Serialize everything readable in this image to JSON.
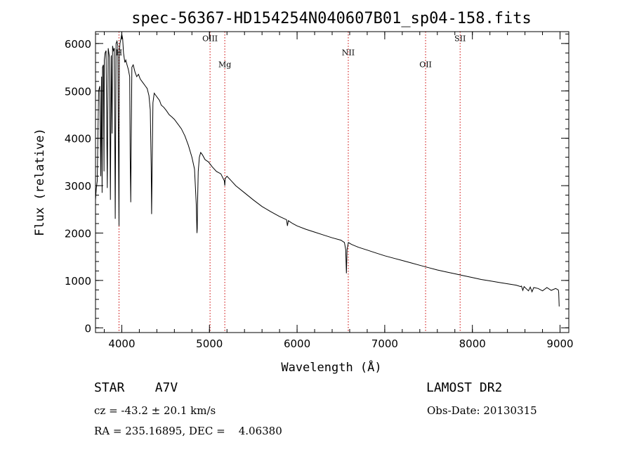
{
  "chart_data": {
    "type": "line",
    "title": "spec-56367-HD154254N040607B01_sp04-158.fits",
    "xlabel": "Wavelength (Å)",
    "ylabel": "Flux (relative)",
    "xlim": [
      3700,
      9100
    ],
    "ylim": [
      -100,
      6250
    ],
    "x_ticks": [
      4000,
      5000,
      6000,
      7000,
      8000,
      9000
    ],
    "y_ticks": [
      0,
      1000,
      2000,
      3000,
      4000,
      5000,
      6000
    ],
    "grid": false,
    "series": [
      {
        "x": [
          3700,
          3710,
          3720,
          3735,
          3750,
          3760,
          3770,
          3775,
          3780,
          3790,
          3797,
          3800,
          3810,
          3820,
          3835,
          3845,
          3860,
          3870,
          3880,
          3889,
          3895,
          3905,
          3915,
          3925,
          3935,
          3945,
          3955,
          3960,
          3968,
          3972,
          3980,
          3990,
          4000,
          4010,
          4020,
          4035,
          4045,
          4060,
          4075,
          4090,
          4096,
          4102,
          4108,
          4115,
          4130,
          4150,
          4170,
          4190,
          4210,
          4230,
          4250,
          4270,
          4290,
          4310,
          4325,
          4335,
          4340,
          4345,
          4355,
          4370,
          4390,
          4410,
          4430,
          4450,
          4480,
          4510,
          4540,
          4570,
          4600,
          4640,
          4680,
          4720,
          4760,
          4800,
          4830,
          4850,
          4858,
          4861,
          4864,
          4872,
          4885,
          4900,
          4920,
          4950,
          4990,
          5030,
          5080,
          5130,
          5170,
          5175,
          5180,
          5200,
          5250,
          5300,
          5400,
          5500,
          5600,
          5700,
          5800,
          5880,
          5890,
          5900,
          5950,
          6000,
          6100,
          6200,
          6300,
          6400,
          6500,
          6540,
          6555,
          6563,
          6570,
          6585,
          6620,
          6700,
          6800,
          6900,
          7000,
          7100,
          7200,
          7300,
          7400,
          7500,
          7600,
          7700,
          7800,
          7900,
          8000,
          8100,
          8200,
          8300,
          8400,
          8500,
          8550,
          8560,
          8575,
          8590,
          8640,
          8660,
          8680,
          8700,
          8750,
          8800,
          8850,
          8900,
          8950,
          8980,
          8985,
          8990
        ],
        "y": [
          2700,
          2950,
          3100,
          5000,
          5100,
          3200,
          5300,
          2850,
          5500,
          5550,
          3300,
          5650,
          5800,
          5850,
          2950,
          5900,
          5700,
          2700,
          5750,
          4100,
          5950,
          5850,
          5900,
          2300,
          6000,
          6050,
          5950,
          4200,
          2150,
          5800,
          6000,
          6100,
          6200,
          6100,
          5800,
          5600,
          5650,
          5550,
          5450,
          5300,
          3600,
          2650,
          4000,
          5500,
          5550,
          5400,
          5300,
          5350,
          5250,
          5200,
          5150,
          5100,
          5050,
          4900,
          4600,
          3400,
          2400,
          3200,
          4750,
          4950,
          4900,
          4850,
          4800,
          4700,
          4650,
          4580,
          4500,
          4450,
          4400,
          4300,
          4200,
          4050,
          3850,
          3600,
          3350,
          2600,
          2000,
          2100,
          2600,
          3300,
          3600,
          3700,
          3650,
          3550,
          3500,
          3400,
          3300,
          3250,
          3100,
          3000,
          3150,
          3200,
          3100,
          3000,
          2850,
          2700,
          2560,
          2450,
          2350,
          2280,
          2150,
          2260,
          2200,
          2150,
          2080,
          2020,
          1960,
          1900,
          1850,
          1800,
          1650,
          1150,
          1650,
          1800,
          1760,
          1700,
          1640,
          1580,
          1520,
          1470,
          1420,
          1370,
          1320,
          1270,
          1220,
          1180,
          1140,
          1100,
          1060,
          1020,
          990,
          960,
          930,
          900,
          870,
          880,
          790,
          870,
          780,
          860,
          760,
          850,
          830,
          780,
          850,
          790,
          830,
          800,
          750,
          450
        ]
      }
    ],
    "annotations": [
      {
        "label": "H",
        "x": 3968,
        "y": 5750
      },
      {
        "label": "OIII",
        "x": 5007,
        "y": 6050
      },
      {
        "label": "Mg",
        "x": 5175,
        "y": 5500
      },
      {
        "label": "NII",
        "x": 6584,
        "y": 5750
      },
      {
        "label": "OII",
        "x": 7466,
        "y": 5500
      },
      {
        "label": "SII",
        "x": 7860,
        "y": 6050
      }
    ],
    "line_color": "#000000",
    "marker_color": "#cc0000"
  },
  "info": {
    "object": "STAR    A7V",
    "survey": "LAMOST DR2",
    "cz": "cz = -43.2 ± 20.1 km/s",
    "obs_date": "Obs-Date: 20130315",
    "radec": "RA = 235.16895, DEC =    4.06380"
  }
}
